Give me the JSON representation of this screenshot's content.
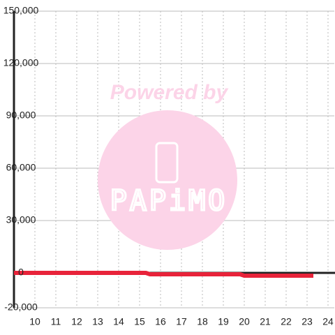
{
  "chart_data": {
    "type": "line",
    "x": [
      9,
      15.3,
      15.5,
      19.8,
      20.0,
      23.3
    ],
    "series": [
      {
        "color": "#e8233a",
        "values": [
          0,
          0,
          -800,
          -800,
          -1600,
          -1600
        ]
      }
    ],
    "xlim": [
      9,
      24.3
    ],
    "xticks": [
      10,
      11,
      12,
      13,
      14,
      15,
      16,
      17,
      18,
      19,
      20,
      21,
      22,
      23,
      24
    ],
    "ylim": [
      -20000,
      150000
    ],
    "yticks": [
      {
        "value": -20000,
        "label": "-20,000"
      },
      0,
      {
        "value": 30000,
        "label": "30,000"
      },
      {
        "value": 60000,
        "label": "60,000"
      },
      {
        "value": 90000,
        "label": "90,000"
      },
      {
        "value": 120000,
        "label": "120,000"
      },
      {
        "value": 150000,
        "label": "150,000"
      }
    ],
    "grid": true,
    "watermark": {
      "line1": "Powered by",
      "logo": "PAPiMO"
    }
  }
}
